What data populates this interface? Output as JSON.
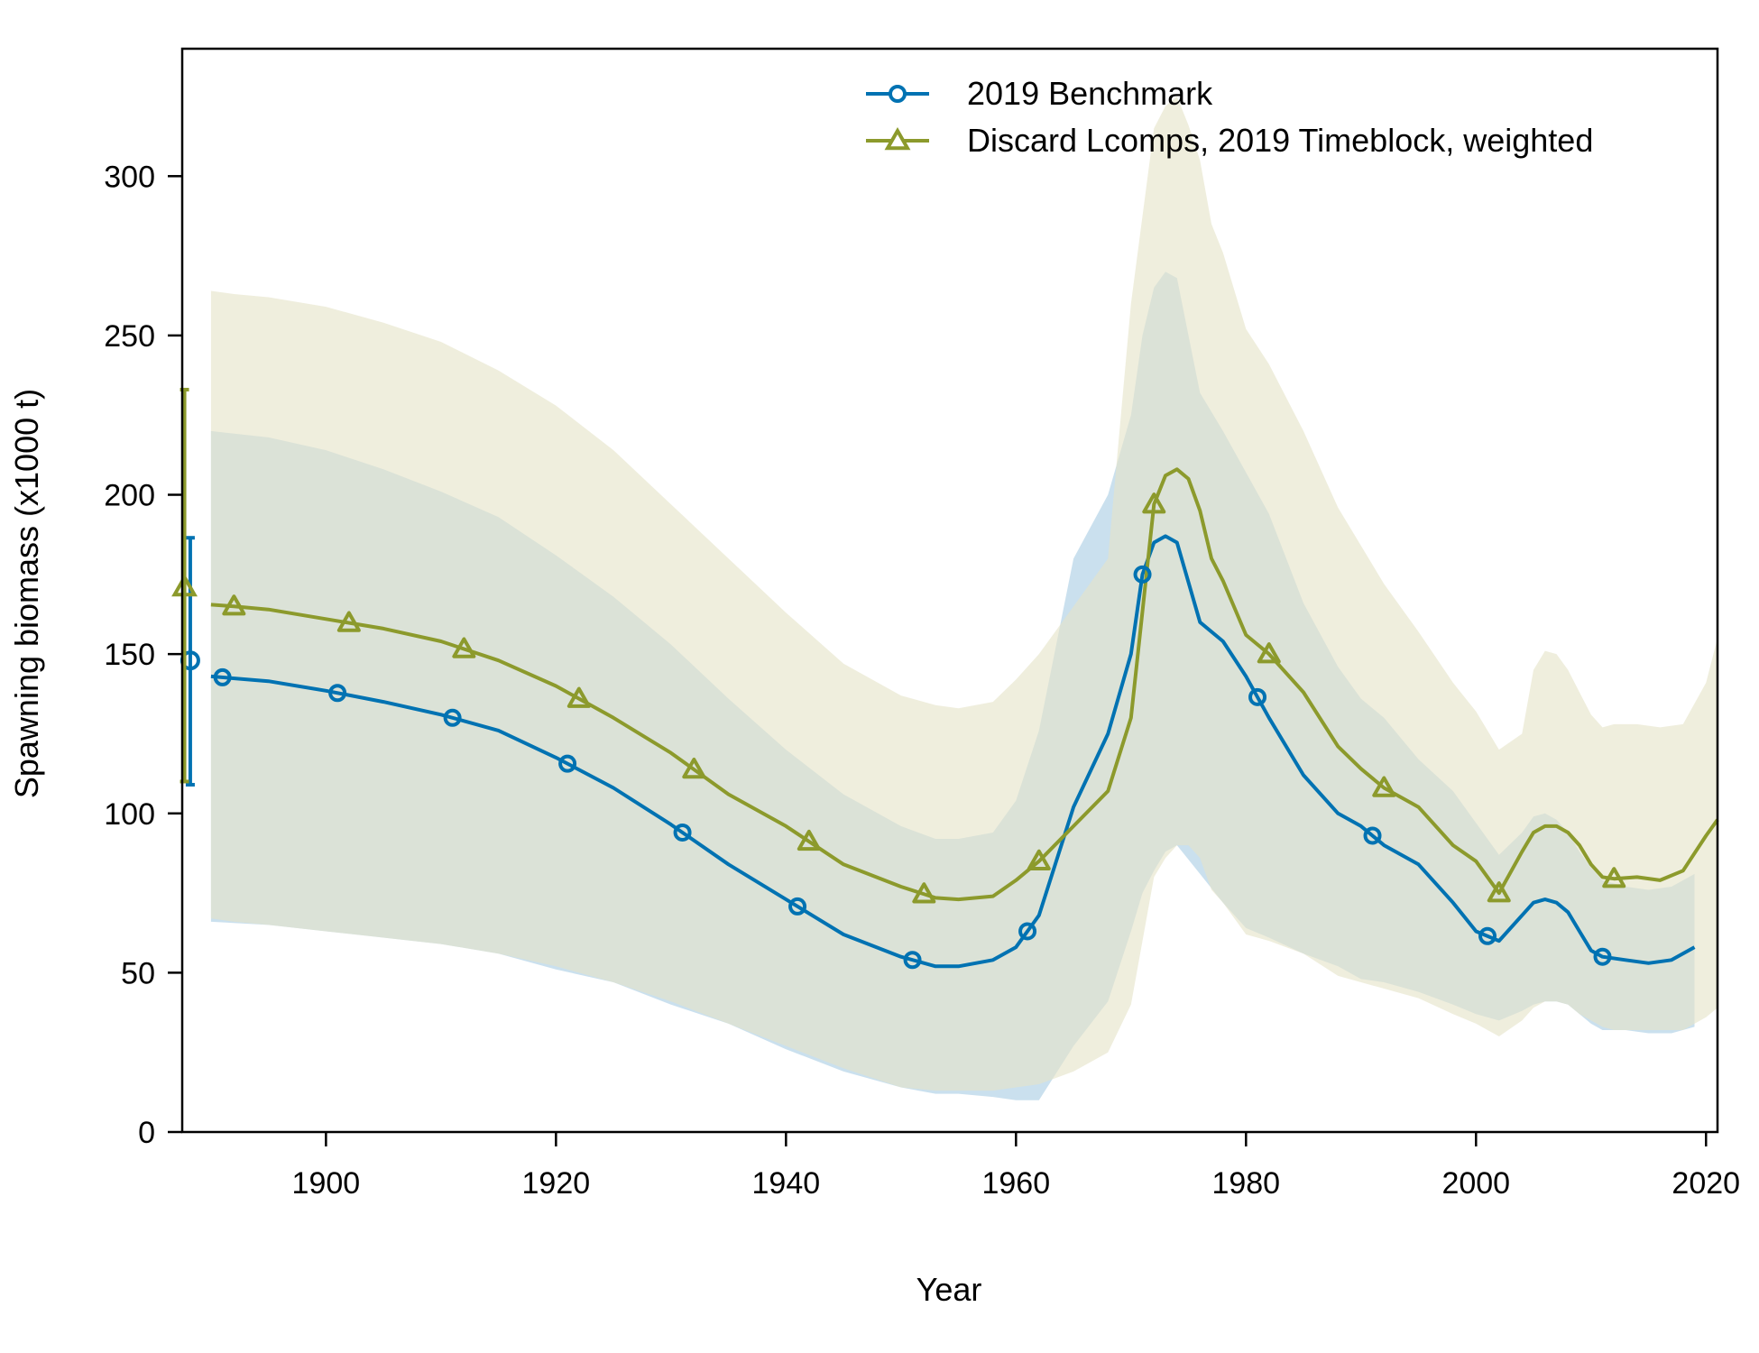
{
  "chart_data": {
    "type": "line",
    "xlabel": "Year",
    "ylabel": "Spawning biomass (x1000 t)",
    "xlim": [
      1887.5,
      2021.0
    ],
    "ylim": [
      0,
      340
    ],
    "xticks": [
      1900,
      1920,
      1940,
      1960,
      1980,
      2000,
      2020
    ],
    "yticks": [
      0,
      50,
      100,
      150,
      200,
      250,
      300
    ],
    "grid": false,
    "legend_position": "top-right",
    "series": [
      {
        "name": "2019 Benchmark",
        "color": "#0072b2",
        "band_color": "#a6cbe3",
        "marker": "circle",
        "initial": {
          "x": 1888.2,
          "y": 148,
          "lower": 109,
          "upper": 186.5
        },
        "x": [
          1890,
          1895,
          1900,
          1905,
          1910,
          1915,
          1920,
          1925,
          1930,
          1935,
          1940,
          1945,
          1950,
          1953,
          1955,
          1958,
          1960,
          1962,
          1965,
          1968,
          1970,
          1971,
          1972,
          1973,
          1974,
          1976,
          1978,
          1980,
          1982,
          1985,
          1988,
          1990,
          1992,
          1995,
          1998,
          2000,
          2002,
          2004,
          2005,
          2006,
          2007,
          2008,
          2009,
          2010,
          2011,
          2013,
          2015,
          2017,
          2019
        ],
        "y": [
          143,
          141.5,
          138.5,
          135,
          131,
          126,
          117.5,
          108,
          96.5,
          84,
          73,
          62,
          55,
          52,
          52,
          54,
          58,
          68,
          102,
          125,
          150,
          175,
          185,
          187,
          185,
          160,
          154,
          143,
          130,
          112,
          100,
          96,
          90,
          84,
          72,
          63,
          60,
          68,
          72,
          73,
          72,
          69,
          63,
          57,
          55,
          54,
          53,
          54,
          58
        ],
        "lower": [
          66,
          65,
          63,
          61,
          59,
          56,
          51,
          47,
          40,
          34,
          26,
          19,
          14,
          12,
          12,
          11,
          10,
          10,
          27,
          41,
          63,
          75,
          82,
          88,
          90,
          81,
          72,
          64,
          61,
          56,
          52,
          48,
          47,
          44,
          40,
          37,
          35,
          38,
          40,
          41,
          41,
          40,
          37,
          34,
          32,
          32,
          31,
          31,
          33
        ],
        "upper": [
          220,
          218,
          214,
          208,
          201,
          193,
          181,
          168,
          153,
          136,
          120,
          106,
          96,
          92,
          92,
          94,
          104,
          126,
          180,
          200,
          225,
          250,
          265,
          270,
          268,
          232,
          220,
          207,
          194,
          166,
          146,
          136,
          130,
          117,
          107,
          97,
          87,
          94,
          99,
          100,
          98,
          94,
          88,
          83,
          79,
          77,
          76,
          77,
          81
        ]
      },
      {
        "name": "Discard Lcomps, 2019 Timeblock, weighted",
        "color": "#8c9a2c",
        "band_color": "#e5e4c8",
        "marker": "triangle",
        "initial": {
          "x": 1887.7,
          "y": 171,
          "lower": 110,
          "upper": 233
        },
        "x": [
          1890,
          1892,
          1895,
          1900,
          1905,
          1910,
          1915,
          1920,
          1925,
          1930,
          1935,
          1940,
          1945,
          1950,
          1953,
          1955,
          1958,
          1960,
          1962,
          1965,
          1968,
          1970,
          1972,
          1973,
          1974,
          1975,
          1976,
          1977,
          1978,
          1980,
          1982,
          1985,
          1988,
          1990,
          1992,
          1995,
          1998,
          2000,
          2002,
          2004,
          2005,
          2006,
          2007,
          2008,
          2009,
          2010,
          2011,
          2012,
          2014,
          2016,
          2018,
          2020,
          2021
        ],
        "y": [
          165.5,
          165,
          164,
          161,
          158,
          154,
          148,
          140,
          130,
          119,
          106,
          96,
          84,
          77,
          73.5,
          73,
          74,
          79,
          85,
          96,
          107,
          130,
          197,
          206,
          208,
          205,
          195,
          180,
          173,
          156,
          150,
          138,
          121,
          114,
          108,
          102,
          90,
          85,
          75,
          88,
          94,
          96,
          96,
          94,
          90,
          84,
          80,
          79.5,
          80,
          79,
          82,
          93,
          98
        ],
        "lower": [
          67,
          66,
          65,
          63,
          61,
          59,
          56,
          52,
          47,
          41,
          34,
          27,
          20,
          14,
          13,
          13,
          13,
          14,
          15,
          19,
          25,
          40,
          80,
          86,
          90,
          90,
          86,
          76,
          72,
          62,
          60,
          56,
          49,
          47,
          45,
          42,
          37,
          34,
          30,
          35,
          39,
          41,
          41,
          40,
          37,
          35,
          33,
          32,
          32,
          32,
          32,
          36,
          39
        ],
        "upper": [
          264,
          263,
          262,
          259,
          254,
          248,
          239,
          228,
          214,
          197,
          180,
          163,
          147,
          137,
          134,
          133,
          135,
          142,
          150,
          165,
          180,
          260,
          315,
          322,
          325,
          316,
          305,
          285,
          276,
          252,
          241,
          220,
          196,
          184,
          172,
          157,
          141,
          132,
          120,
          125,
          145,
          151,
          150,
          145,
          138,
          131,
          127,
          128,
          128,
          127,
          128,
          141,
          155
        ]
      }
    ]
  }
}
